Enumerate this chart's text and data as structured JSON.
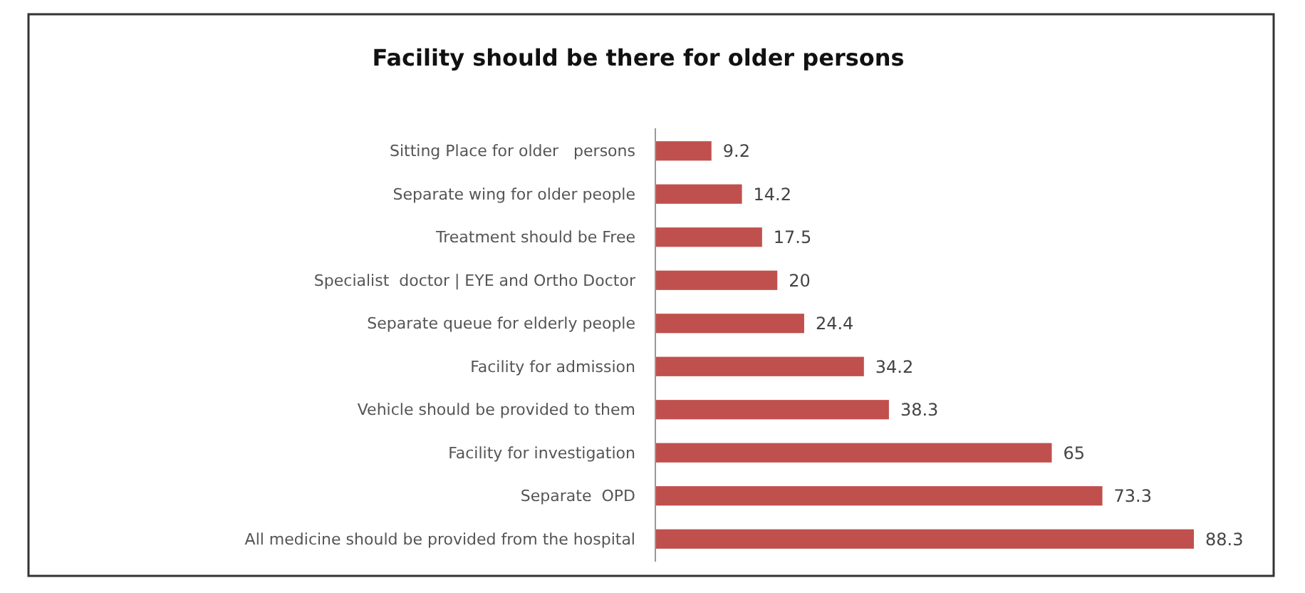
{
  "chart_data": {
    "type": "bar",
    "orientation": "horizontal",
    "title": "Facility should be there for older persons",
    "categories": [
      "Sitting Place for older   persons",
      "Separate wing for older people",
      "Treatment should be Free",
      "Specialist  doctor | EYE and Ortho Doctor",
      "Separate queue for elderly people",
      "Facility for admission",
      "Vehicle should be provided to them",
      "Facility for investigation",
      "Separate  OPD",
      "All medicine should be provided from the hospital"
    ],
    "values": [
      9.2,
      14.2,
      17.5,
      20,
      24.4,
      34.2,
      38.3,
      65,
      73.3,
      88.3
    ],
    "color": "#c0504d",
    "data_labels": true
  }
}
